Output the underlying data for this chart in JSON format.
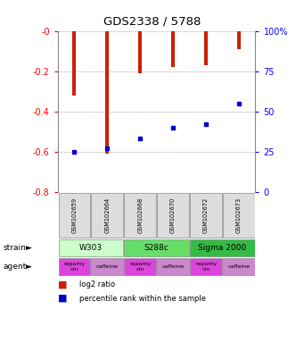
{
  "title": "GDS2338 / 5788",
  "samples": [
    "GSM102659",
    "GSM102664",
    "GSM102668",
    "GSM102670",
    "GSM102672",
    "GSM102673"
  ],
  "log2_ratios": [
    -0.32,
    -0.61,
    -0.21,
    -0.18,
    -0.17,
    -0.09
  ],
  "percentile_ranks": [
    25,
    27,
    33,
    40,
    42,
    55
  ],
  "ylim_left": [
    -0.8,
    0.0
  ],
  "ylim_right": [
    0,
    100
  ],
  "yticks_left": [
    0.0,
    -0.2,
    -0.4,
    -0.6,
    -0.8
  ],
  "ytick_labels_left": [
    "-0",
    "-0.2",
    "-0.4",
    "-0.6",
    "-0.8"
  ],
  "yticks_right": [
    0,
    25,
    50,
    75,
    100
  ],
  "ytick_labels_right": [
    "0",
    "25",
    "50",
    "75",
    "100%"
  ],
  "bar_color": "#cc2000",
  "dot_color": "#0000cc",
  "bar_width": 0.12,
  "grid_color": "#888888",
  "strains": [
    {
      "label": "W303",
      "span": [
        0,
        2
      ],
      "color": "#ccffcc"
    },
    {
      "label": "S288c",
      "span": [
        2,
        4
      ],
      "color": "#66dd66"
    },
    {
      "label": "Sigma 2000",
      "span": [
        4,
        6
      ],
      "color": "#33bb44"
    }
  ],
  "agents": [
    {
      "label": "rapamycin",
      "col": 0,
      "color": "#dd44dd"
    },
    {
      "label": "caffeine",
      "col": 1,
      "color": "#cc88cc"
    },
    {
      "label": "rapamycin",
      "col": 2,
      "color": "#dd44dd"
    },
    {
      "label": "caffeine",
      "col": 3,
      "color": "#cc88cc"
    },
    {
      "label": "rapamycin",
      "col": 4,
      "color": "#dd44dd"
    },
    {
      "label": "caffeine",
      "col": 5,
      "color": "#cc88cc"
    }
  ]
}
